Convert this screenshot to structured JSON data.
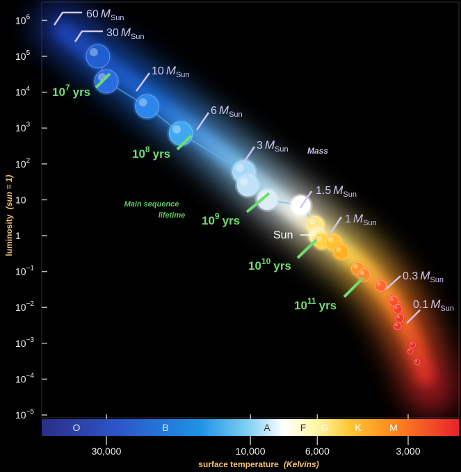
{
  "chart_data": {
    "type": "scatter",
    "title": "",
    "xlabel": "surface temperature",
    "xlabel_unit": "(Kelvins)",
    "ylabel_prefix": "luminosity",
    "ylabel_unit": "(sun = 1)",
    "x_scale": "log-reversed",
    "y_scale": "log",
    "x_ticks": [
      {
        "value": 30000,
        "label": "30,000"
      },
      {
        "value": 10000,
        "label": "10,000"
      },
      {
        "value": 6000,
        "label": "6,000"
      },
      {
        "value": 3000,
        "label": "3,000"
      }
    ],
    "y_ticks": [
      {
        "exp": 6,
        "base": "10",
        "sup": "6"
      },
      {
        "exp": 5,
        "base": "10",
        "sup": "5"
      },
      {
        "exp": 4,
        "base": "10",
        "sup": "4"
      },
      {
        "exp": 3,
        "base": "10",
        "sup": "3"
      },
      {
        "exp": 2,
        "base": "10",
        "sup": "2"
      },
      {
        "exp": 1,
        "base": "10",
        "sup": ""
      },
      {
        "exp": 0,
        "base": "1",
        "sup": ""
      },
      {
        "exp": -1,
        "base": "10",
        "sup": "−1"
      },
      {
        "exp": -2,
        "base": "10",
        "sup": "−2"
      },
      {
        "exp": -3,
        "base": "10",
        "sup": "−3"
      },
      {
        "exp": -4,
        "base": "10",
        "sup": "−4"
      },
      {
        "exp": -5,
        "base": "10",
        "sup": "−5"
      }
    ],
    "spectral_classes": [
      "O",
      "B",
      "A",
      "F",
      "G",
      "K",
      "M"
    ],
    "stars": [
      {
        "temperature": 32000,
        "luminosity": 100000,
        "color": "#1f5fd0"
      },
      {
        "temperature": 30000,
        "luminosity": 20000,
        "color": "#2a6de0"
      },
      {
        "temperature": 22000,
        "luminosity": 4000,
        "color": "#2d86ea"
      },
      {
        "temperature": 17000,
        "luminosity": 700,
        "color": "#3fa8f0"
      },
      {
        "temperature": 10500,
        "luminosity": 60,
        "color": "#a9d8f6"
      },
      {
        "temperature": 10200,
        "luminosity": 25,
        "color": "#bfe2f8"
      },
      {
        "temperature": 8800,
        "luminosity": 10,
        "color": "#dcecf8"
      },
      {
        "temperature": 6800,
        "luminosity": 7,
        "color": "#ffffff"
      },
      {
        "temperature": 6100,
        "luminosity": 2,
        "color": "#ffe58a"
      },
      {
        "temperature": 6000,
        "luminosity": 1,
        "color": "#fff1b0"
      },
      {
        "temperature": 5800,
        "luminosity": 0.7,
        "color": "#ffd24a"
      },
      {
        "temperature": 5300,
        "luminosity": 0.65,
        "color": "#ffc233"
      },
      {
        "temperature": 5000,
        "luminosity": 0.35,
        "color": "#ffb020"
      },
      {
        "temperature": 4400,
        "luminosity": 0.12,
        "color": "#ff9526"
      },
      {
        "temperature": 4200,
        "luminosity": 0.08,
        "color": "#ff8a2a"
      },
      {
        "temperature": 3700,
        "luminosity": 0.04,
        "color": "#ff6a2a"
      },
      {
        "temperature": 3350,
        "luminosity": 0.015,
        "color": "#ff5228"
      },
      {
        "temperature": 3250,
        "luminosity": 0.009,
        "color": "#f24228"
      },
      {
        "temperature": 3200,
        "luminosity": 0.005,
        "color": "#ee3a26"
      },
      {
        "temperature": 3250,
        "luminosity": 0.003,
        "color": "#e83526"
      },
      {
        "temperature": 2900,
        "luminosity": 0.0009,
        "color": "#e22a22"
      },
      {
        "temperature": 2950,
        "luminosity": 0.0006,
        "color": "#e22a22"
      },
      {
        "temperature": 2800,
        "luminosity": 0.0003,
        "color": "#dd2a22"
      }
    ],
    "mass_labels": [
      {
        "value": "60",
        "suffix": "Sun"
      },
      {
        "value": "30",
        "suffix": "Sun"
      },
      {
        "value": "10",
        "suffix": "Sun"
      },
      {
        "value": "6",
        "suffix": "Sun"
      },
      {
        "value": "3",
        "suffix": "Sun"
      },
      {
        "value": "1.5",
        "suffix": "Sun"
      },
      {
        "value": "1",
        "suffix": "Sun"
      },
      {
        "value": "0.3",
        "suffix": "Sun"
      },
      {
        "value": "0.1",
        "suffix": "Sun"
      }
    ],
    "lifetime_labels": [
      {
        "base": "10",
        "sup": "7",
        "unit": "yrs"
      },
      {
        "base": "10",
        "sup": "8",
        "unit": "yrs"
      },
      {
        "base": "10",
        "sup": "9",
        "unit": "yrs"
      },
      {
        "base": "10",
        "sup": "10",
        "unit": "yrs"
      },
      {
        "base": "10",
        "sup": "11",
        "unit": "yrs"
      }
    ],
    "annotations": {
      "mass_note": "Mass",
      "lifetime_note_line1": "Main sequence",
      "lifetime_note_line2": "lifetime",
      "sun_label": "Sun"
    }
  },
  "colors": {
    "mass_text": "#cfc6ee",
    "lifetime_text": "#6fdc6f",
    "axis_title": "#f2c36b"
  }
}
